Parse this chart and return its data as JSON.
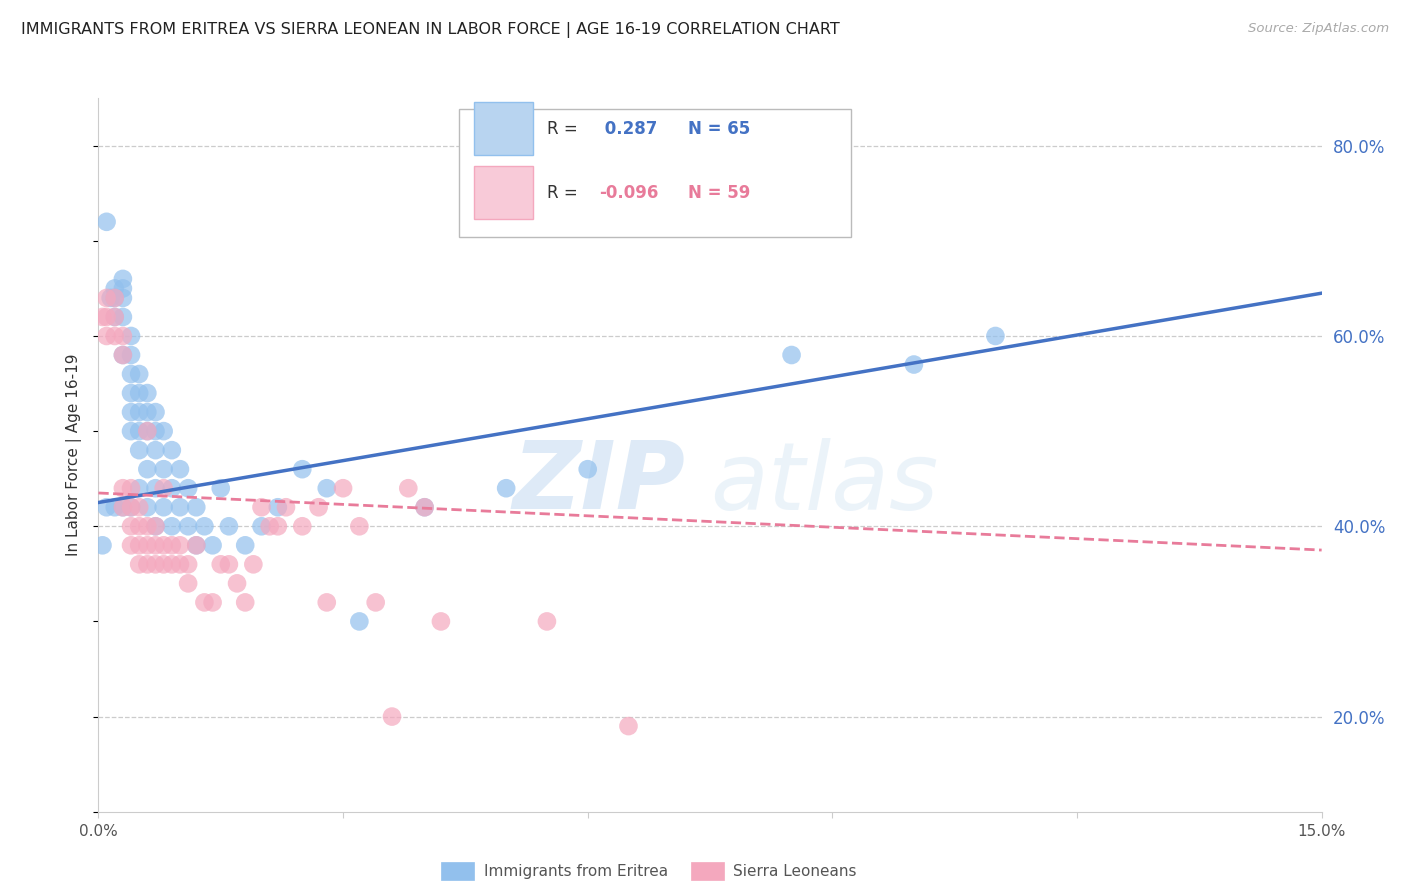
{
  "title": "IMMIGRANTS FROM ERITREA VS SIERRA LEONEAN IN LABOR FORCE | AGE 16-19 CORRELATION CHART",
  "source": "Source: ZipAtlas.com",
  "ylabel": "In Labor Force | Age 16-19",
  "xmin": 0.0,
  "xmax": 0.15,
  "ymin": 0.1,
  "ymax": 0.85,
  "ytick_vals": [
    0.2,
    0.4,
    0.6,
    0.8
  ],
  "blue_color": "#92C0ED",
  "pink_color": "#F4A8BE",
  "blue_line_color": "#4472C4",
  "pink_line_color": "#E87B9A",
  "R_blue": 0.287,
  "N_blue": 65,
  "R_pink": -0.096,
  "N_pink": 59,
  "legend_label_blue": "Immigrants from Eritrea",
  "legend_label_pink": "Sierra Leoneans",
  "watermark_zip": "ZIP",
  "watermark_atlas": "atlas",
  "blue_line_x0": 0.0,
  "blue_line_y0": 0.425,
  "blue_line_x1": 0.15,
  "blue_line_y1": 0.645,
  "pink_line_x0": 0.0,
  "pink_line_y0": 0.435,
  "pink_line_x1": 0.15,
  "pink_line_y1": 0.375,
  "blue_scatter_x": [
    0.0005,
    0.001,
    0.001,
    0.0015,
    0.002,
    0.002,
    0.002,
    0.002,
    0.003,
    0.003,
    0.003,
    0.003,
    0.003,
    0.003,
    0.004,
    0.004,
    0.004,
    0.004,
    0.004,
    0.004,
    0.004,
    0.005,
    0.005,
    0.005,
    0.005,
    0.005,
    0.005,
    0.006,
    0.006,
    0.006,
    0.006,
    0.006,
    0.007,
    0.007,
    0.007,
    0.007,
    0.007,
    0.008,
    0.008,
    0.008,
    0.009,
    0.009,
    0.009,
    0.01,
    0.01,
    0.011,
    0.011,
    0.012,
    0.012,
    0.013,
    0.014,
    0.015,
    0.016,
    0.018,
    0.02,
    0.022,
    0.025,
    0.028,
    0.032,
    0.04,
    0.05,
    0.06,
    0.085,
    0.1,
    0.11
  ],
  "blue_scatter_y": [
    0.38,
    0.72,
    0.42,
    0.64,
    0.65,
    0.64,
    0.62,
    0.42,
    0.66,
    0.65,
    0.64,
    0.62,
    0.58,
    0.42,
    0.6,
    0.58,
    0.56,
    0.54,
    0.52,
    0.5,
    0.42,
    0.56,
    0.54,
    0.52,
    0.5,
    0.48,
    0.44,
    0.54,
    0.52,
    0.5,
    0.46,
    0.42,
    0.52,
    0.5,
    0.48,
    0.44,
    0.4,
    0.5,
    0.46,
    0.42,
    0.48,
    0.44,
    0.4,
    0.46,
    0.42,
    0.44,
    0.4,
    0.42,
    0.38,
    0.4,
    0.38,
    0.44,
    0.4,
    0.38,
    0.4,
    0.42,
    0.46,
    0.44,
    0.3,
    0.42,
    0.44,
    0.46,
    0.58,
    0.57,
    0.6
  ],
  "pink_scatter_x": [
    0.0005,
    0.001,
    0.001,
    0.001,
    0.002,
    0.002,
    0.002,
    0.003,
    0.003,
    0.003,
    0.003,
    0.004,
    0.004,
    0.004,
    0.004,
    0.005,
    0.005,
    0.005,
    0.005,
    0.006,
    0.006,
    0.006,
    0.006,
    0.007,
    0.007,
    0.007,
    0.008,
    0.008,
    0.008,
    0.009,
    0.009,
    0.01,
    0.01,
    0.011,
    0.011,
    0.012,
    0.013,
    0.014,
    0.015,
    0.016,
    0.017,
    0.018,
    0.019,
    0.02,
    0.021,
    0.022,
    0.023,
    0.025,
    0.027,
    0.028,
    0.03,
    0.032,
    0.034,
    0.036,
    0.038,
    0.04,
    0.042,
    0.055,
    0.065
  ],
  "pink_scatter_y": [
    0.62,
    0.64,
    0.62,
    0.6,
    0.64,
    0.62,
    0.6,
    0.6,
    0.58,
    0.44,
    0.42,
    0.44,
    0.42,
    0.4,
    0.38,
    0.42,
    0.4,
    0.38,
    0.36,
    0.4,
    0.38,
    0.36,
    0.5,
    0.4,
    0.38,
    0.36,
    0.38,
    0.36,
    0.44,
    0.38,
    0.36,
    0.38,
    0.36,
    0.36,
    0.34,
    0.38,
    0.32,
    0.32,
    0.36,
    0.36,
    0.34,
    0.32,
    0.36,
    0.42,
    0.4,
    0.4,
    0.42,
    0.4,
    0.42,
    0.32,
    0.44,
    0.4,
    0.32,
    0.2,
    0.44,
    0.42,
    0.3,
    0.3,
    0.19
  ]
}
